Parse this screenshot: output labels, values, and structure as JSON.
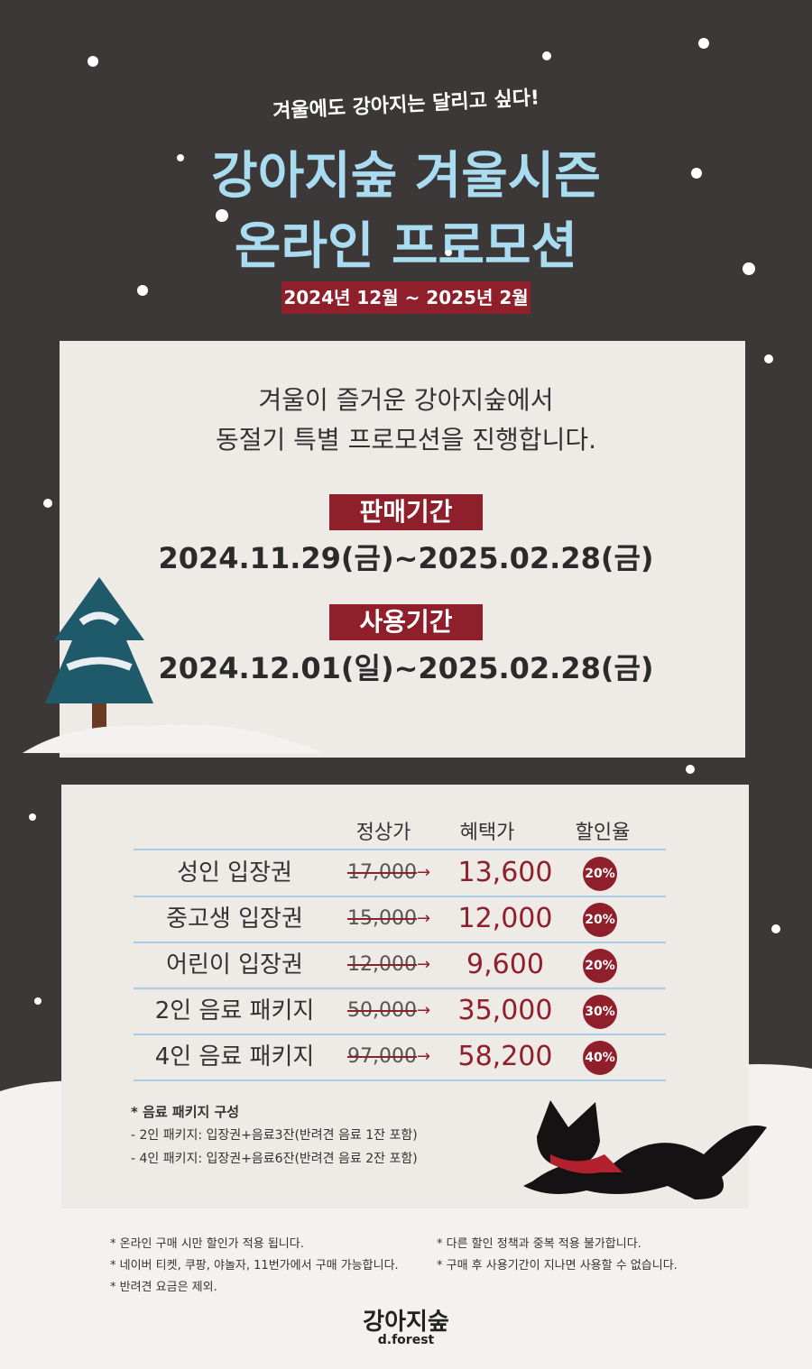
{
  "header": {
    "subtitle": "겨울에도 강아지는 달리고 싶다!",
    "title_lines": [
      "강아지숲 겨울시즌",
      "온라인 프로모션"
    ],
    "period": "2024년 12월 ~ 2025년 2월"
  },
  "intro": [
    "겨울이 즐거운 강아지숲에서",
    "동절기 특별 프로모션을 진행합니다."
  ],
  "periods": [
    {
      "label": "판매기간",
      "dates": "2024.11.29(금)~2025.02.28(금)"
    },
    {
      "label": "사용기간",
      "dates": "2024.12.01(일)~2025.02.28(금)"
    }
  ],
  "table": {
    "headers": [
      "정상가",
      "혜택가",
      "할인율"
    ],
    "rows": [
      [
        "성인 입장권",
        "17,000",
        "13,600",
        "20%"
      ],
      [
        "중고생 입장권",
        "15,000",
        "12,000",
        "20%"
      ],
      [
        "어린이 입장권",
        "12,000",
        "9,600",
        "20%"
      ],
      [
        "2인 음료 패키지",
        "50,000",
        "35,000",
        "30%"
      ],
      [
        "4인 음료 패키지",
        "97,000",
        "58,200",
        "40%"
      ]
    ]
  },
  "package_notes": {
    "title": "* 음료 패키지 구성",
    "items": [
      "- 2인 패키지: 입장권+음료3잔(반려견 음료 1잔 포함)",
      "- 4인 패키지: 입장권+음료6잔(반려견 음료 2잔 포함)"
    ]
  },
  "footnotes": {
    "left": [
      "* 온라인 구매 시만 할인가 적용 됩니다.",
      "* 네이버 티켓, 쿠팡, 야놀자, 11번가에서 구매 가능합니다.",
      "* 반려견 요금은 제외."
    ],
    "right": [
      "* 다른 할인 정책과 중복 적용 불가합니다.",
      "* 구매 후 사용기간이 지나면 사용할 수 없습니다."
    ]
  },
  "logo": {
    "name": "강아지숲",
    "sub": "d.forest"
  }
}
